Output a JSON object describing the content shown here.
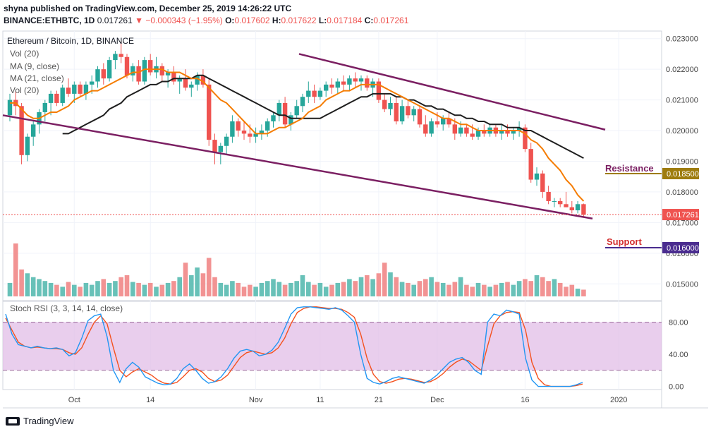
{
  "header": {
    "published": "shyna published on TradingView.com, December 25, 2019 14:26:22 UTC",
    "symbol": "BINANCE:ETHBTC, 1D",
    "last": "0.017261",
    "change": "−0.000343 (−1.95%)",
    "o_label": "O:",
    "o": "0.017602",
    "h_label": "H:",
    "h": "0.017622",
    "l_label": "L:",
    "l": "0.017184",
    "c_label": "C:",
    "c": "0.017261"
  },
  "legend": {
    "title": "Ethereum / Bitcoin, 1D, BINANCE",
    "vol1": "Vol (20)",
    "ma9": "MA (9, close)",
    "ma21": "MA (21, close)",
    "vol2": "Vol (20)"
  },
  "rsi_label": "Stoch RSI (3, 3, 14, 14, close)",
  "annotations": {
    "resistance": "Resistance",
    "resistance_value": "0.018500",
    "support": "Support",
    "support_value": "0.016000",
    "last_price_tag": "0.017261"
  },
  "footer": {
    "brand": "TradingView"
  },
  "colors": {
    "up": "#26a69a",
    "down": "#ef5350",
    "vol_up": "#4db6ac",
    "vol_down": "#f08080",
    "ma9": "#f57c00",
    "ma21": "#1e1e1e",
    "channel": "#7b1f62",
    "rsi_k": "#2196f3",
    "rsi_d": "#f4511e",
    "rsi_band": "#e1bee7",
    "resistance": "#9e7c0e",
    "support": "#4a2c8f"
  },
  "chart_data": {
    "type": "candlestick",
    "price_axis": {
      "ylim": [
        0.0145,
        0.0232
      ],
      "ticks": [
        "0.023000",
        "0.022000",
        "0.021000",
        "0.020000",
        "0.019000",
        "0.018000",
        "0.017000",
        "0.016000",
        "0.015000"
      ]
    },
    "rsi_axis": {
      "ylim": [
        -3,
        105
      ],
      "ticks": [
        "80.00",
        "40.00",
        "0.00"
      ],
      "band": [
        20,
        80
      ]
    },
    "x_axis": {
      "ticks": [
        {
          "i": 11,
          "label": "Oct"
        },
        {
          "i": 24,
          "label": "14"
        },
        {
          "i": 42,
          "label": "Nov"
        },
        {
          "i": 53,
          "label": "11"
        },
        {
          "i": 63,
          "label": "21"
        },
        {
          "i": 73,
          "label": "Dec"
        },
        {
          "i": 88,
          "label": "16"
        },
        {
          "i": 104,
          "label": "2020"
        }
      ]
    },
    "candles": [
      [
        0.0205,
        0.0212,
        0.0203,
        0.021
      ],
      [
        0.021,
        0.0213,
        0.0205,
        0.0208
      ],
      [
        0.0208,
        0.0209,
        0.0189,
        0.0192
      ],
      [
        0.0192,
        0.0199,
        0.019,
        0.0198
      ],
      [
        0.0198,
        0.0203,
        0.0195,
        0.0202
      ],
      [
        0.0202,
        0.0207,
        0.0199,
        0.0206
      ],
      [
        0.0206,
        0.021,
        0.0203,
        0.0209
      ],
      [
        0.0209,
        0.0213,
        0.0205,
        0.0212
      ],
      [
        0.0212,
        0.0213,
        0.0208,
        0.0209
      ],
      [
        0.0209,
        0.0215,
        0.0208,
        0.0214
      ],
      [
        0.0214,
        0.0217,
        0.0211,
        0.0212
      ],
      [
        0.0212,
        0.0216,
        0.0209,
        0.0215
      ],
      [
        0.0215,
        0.0216,
        0.0211,
        0.0212
      ],
      [
        0.0212,
        0.0216,
        0.021,
        0.0215
      ],
      [
        0.0215,
        0.0218,
        0.0212,
        0.0216
      ],
      [
        0.0216,
        0.0221,
        0.0214,
        0.022
      ],
      [
        0.022,
        0.0222,
        0.0215,
        0.0217
      ],
      [
        0.0217,
        0.0224,
        0.0216,
        0.0223
      ],
      [
        0.0223,
        0.0226,
        0.022,
        0.0225
      ],
      [
        0.0225,
        0.0229,
        0.0222,
        0.0224
      ],
      [
        0.0224,
        0.0225,
        0.0217,
        0.0218
      ],
      [
        0.0218,
        0.0222,
        0.0216,
        0.0221
      ],
      [
        0.0221,
        0.0223,
        0.0215,
        0.0216
      ],
      [
        0.0216,
        0.0224,
        0.0215,
        0.0223
      ],
      [
        0.0223,
        0.0225,
        0.0218,
        0.0219
      ],
      [
        0.0219,
        0.0224,
        0.0217,
        0.0221
      ],
      [
        0.0221,
        0.0222,
        0.0216,
        0.0218
      ],
      [
        0.0218,
        0.022,
        0.0214,
        0.0219
      ],
      [
        0.0219,
        0.0221,
        0.0215,
        0.0216
      ],
      [
        0.0216,
        0.0218,
        0.0212,
        0.0217
      ],
      [
        0.0217,
        0.022,
        0.0213,
        0.0214
      ],
      [
        0.0214,
        0.0216,
        0.0211,
        0.0215
      ],
      [
        0.0215,
        0.0219,
        0.0213,
        0.0218
      ],
      [
        0.0218,
        0.022,
        0.0214,
        0.0215
      ],
      [
        0.0215,
        0.0217,
        0.0195,
        0.0197
      ],
      [
        0.0197,
        0.0199,
        0.0189,
        0.0193
      ],
      [
        0.0193,
        0.0196,
        0.0189,
        0.0195
      ],
      [
        0.0195,
        0.0199,
        0.0192,
        0.0198
      ],
      [
        0.0198,
        0.0205,
        0.0196,
        0.0203
      ],
      [
        0.0203,
        0.0204,
        0.0198,
        0.02
      ],
      [
        0.02,
        0.0203,
        0.0197,
        0.0199
      ],
      [
        0.0199,
        0.0202,
        0.0196,
        0.0198
      ],
      [
        0.0198,
        0.0201,
        0.0196,
        0.0199
      ],
      [
        0.0199,
        0.0202,
        0.0197,
        0.02
      ],
      [
        0.02,
        0.0204,
        0.0198,
        0.0203
      ],
      [
        0.0203,
        0.0206,
        0.0201,
        0.0205
      ],
      [
        0.0205,
        0.021,
        0.0203,
        0.0209
      ],
      [
        0.0209,
        0.0211,
        0.0201,
        0.0202
      ],
      [
        0.0202,
        0.0206,
        0.02,
        0.0205
      ],
      [
        0.0205,
        0.021,
        0.0204,
        0.0208
      ],
      [
        0.0208,
        0.0212,
        0.0206,
        0.0211
      ],
      [
        0.0211,
        0.0216,
        0.0209,
        0.0213
      ],
      [
        0.0213,
        0.0215,
        0.0209,
        0.0211
      ],
      [
        0.0211,
        0.0214,
        0.021,
        0.0213
      ],
      [
        0.0213,
        0.0216,
        0.0211,
        0.0215
      ],
      [
        0.0215,
        0.0217,
        0.0212,
        0.0214
      ],
      [
        0.0214,
        0.0217,
        0.0212,
        0.0216
      ],
      [
        0.0216,
        0.0218,
        0.0213,
        0.0215
      ],
      [
        0.0215,
        0.0218,
        0.0213,
        0.0217
      ],
      [
        0.0217,
        0.0219,
        0.0214,
        0.0216
      ],
      [
        0.0216,
        0.0218,
        0.0213,
        0.0217
      ],
      [
        0.0217,
        0.0218,
        0.0213,
        0.0214
      ],
      [
        0.0214,
        0.0217,
        0.0211,
        0.0216
      ],
      [
        0.0216,
        0.0217,
        0.0209,
        0.021
      ],
      [
        0.021,
        0.0212,
        0.0206,
        0.0207
      ],
      [
        0.0207,
        0.0211,
        0.0205,
        0.0209
      ],
      [
        0.0209,
        0.0211,
        0.0202,
        0.0203
      ],
      [
        0.0203,
        0.021,
        0.0202,
        0.0208
      ],
      [
        0.0208,
        0.021,
        0.0204,
        0.0205
      ],
      [
        0.0205,
        0.0208,
        0.0203,
        0.0207
      ],
      [
        0.0207,
        0.0208,
        0.0201,
        0.0202
      ],
      [
        0.0202,
        0.0205,
        0.0198,
        0.0199
      ],
      [
        0.0199,
        0.0204,
        0.0198,
        0.0203
      ],
      [
        0.0203,
        0.0206,
        0.0201,
        0.0202
      ],
      [
        0.0202,
        0.0205,
        0.02,
        0.0204
      ],
      [
        0.0204,
        0.0206,
        0.0201,
        0.0202
      ],
      [
        0.0202,
        0.0204,
        0.0197,
        0.0199
      ],
      [
        0.0199,
        0.0203,
        0.0198,
        0.0201
      ],
      [
        0.0201,
        0.0202,
        0.0198,
        0.0199
      ],
      [
        0.0199,
        0.0202,
        0.0197,
        0.0198
      ],
      [
        0.0198,
        0.0201,
        0.0197,
        0.02
      ],
      [
        0.02,
        0.0202,
        0.0198,
        0.0199
      ],
      [
        0.0199,
        0.0202,
        0.0198,
        0.0201
      ],
      [
        0.0201,
        0.0202,
        0.0198,
        0.0199
      ],
      [
        0.0199,
        0.0202,
        0.0197,
        0.02
      ],
      [
        0.02,
        0.0202,
        0.0198,
        0.0199
      ],
      [
        0.0199,
        0.0201,
        0.0197,
        0.02
      ],
      [
        0.02,
        0.0203,
        0.0198,
        0.0201
      ],
      [
        0.0201,
        0.0202,
        0.0193,
        0.0194
      ],
      [
        0.0194,
        0.0196,
        0.0183,
        0.0184
      ],
      [
        0.0184,
        0.0188,
        0.0182,
        0.0186
      ],
      [
        0.0186,
        0.0187,
        0.0178,
        0.018
      ],
      [
        0.018,
        0.0182,
        0.0176,
        0.0177
      ],
      [
        0.0177,
        0.0178,
        0.0175,
        0.0177
      ],
      [
        0.0177,
        0.0178,
        0.0175,
        0.0176
      ],
      [
        0.0176,
        0.018,
        0.0175,
        0.0175
      ],
      [
        0.0175,
        0.0177,
        0.0173,
        0.0174
      ],
      [
        0.0174,
        0.0177,
        0.0173,
        0.0176
      ],
      [
        0.0176,
        0.01762,
        0.01718,
        0.01726
      ]
    ],
    "ma9": [
      0.0209,
      0.0209,
      0.0207,
      0.0205,
      0.0204,
      0.0204,
      0.0205,
      0.0206,
      0.0206,
      0.0207,
      0.0208,
      0.021,
      0.0211,
      0.0212,
      0.0213,
      0.0213,
      0.0214,
      0.0215,
      0.0216,
      0.0217,
      0.0218,
      0.0219,
      0.0219,
      0.022,
      0.022,
      0.022,
      0.022,
      0.0219,
      0.0219,
      0.0219,
      0.0218,
      0.0217,
      0.0217,
      0.0216,
      0.0214,
      0.0212,
      0.021,
      0.0209,
      0.0207,
      0.0205,
      0.0203,
      0.0201,
      0.0199,
      0.0199,
      0.0199,
      0.02,
      0.0201,
      0.0201,
      0.0202,
      0.0203,
      0.0204,
      0.0206,
      0.0207,
      0.0208,
      0.021,
      0.0211,
      0.0212,
      0.0213,
      0.0213,
      0.0214,
      0.0215,
      0.0215,
      0.0215,
      0.0215,
      0.0214,
      0.0213,
      0.0212,
      0.0211,
      0.021,
      0.0209,
      0.0208,
      0.0207,
      0.0206,
      0.0205,
      0.0204,
      0.0204,
      0.0203,
      0.0202,
      0.0202,
      0.0201,
      0.02,
      0.02,
      0.02,
      0.02,
      0.02,
      0.02,
      0.02,
      0.02,
      0.0199,
      0.0197,
      0.0196,
      0.0194,
      0.0191,
      0.0189,
      0.0187,
      0.0184,
      0.0182,
      0.0179,
      0.0177
    ],
    "ma21": [
      null,
      null,
      null,
      null,
      null,
      null,
      null,
      null,
      null,
      0.0199,
      0.0199,
      0.02,
      0.0201,
      0.0202,
      0.0203,
      0.0204,
      0.0205,
      0.0207,
      0.0208,
      0.0209,
      0.0211,
      0.0212,
      0.0213,
      0.0214,
      0.0215,
      0.0215,
      0.0216,
      0.0216,
      0.0217,
      0.0217,
      0.0217,
      0.0217,
      0.0218,
      0.0218,
      0.0217,
      0.0216,
      0.0215,
      0.0214,
      0.0213,
      0.0212,
      0.0211,
      0.021,
      0.0209,
      0.0208,
      0.0207,
      0.0206,
      0.0205,
      0.0205,
      0.0204,
      0.0204,
      0.0204,
      0.0204,
      0.0204,
      0.0204,
      0.0205,
      0.0206,
      0.0207,
      0.0208,
      0.0209,
      0.021,
      0.0211,
      0.0211,
      0.0212,
      0.0212,
      0.0212,
      0.0212,
      0.0211,
      0.0211,
      0.021,
      0.021,
      0.0209,
      0.0208,
      0.0208,
      0.0207,
      0.0207,
      0.0206,
      0.0205,
      0.0205,
      0.0204,
      0.0204,
      0.0203,
      0.0203,
      0.0202,
      0.0202,
      0.0202,
      0.0201,
      0.0201,
      0.0201,
      0.02,
      0.02,
      0.0199,
      0.0198,
      0.0197,
      0.0196,
      0.0195,
      0.0194,
      0.0193,
      0.0192,
      0.0191
    ],
    "volume": [
      14,
      55,
      28,
      24,
      20,
      18,
      16,
      14,
      12,
      10,
      15,
      12,
      10,
      14,
      12,
      16,
      18,
      14,
      16,
      20,
      22,
      15,
      14,
      12,
      14,
      10,
      12,
      14,
      16,
      20,
      35,
      22,
      30,
      24,
      40,
      20,
      14,
      12,
      16,
      14,
      10,
      12,
      10,
      14,
      16,
      18,
      15,
      12,
      14,
      16,
      22,
      15,
      12,
      14,
      10,
      12,
      14,
      15,
      18,
      16,
      20,
      22,
      18,
      24,
      35,
      25,
      20,
      15,
      14,
      12,
      16,
      18,
      20,
      15,
      14,
      12,
      15,
      20,
      12,
      10,
      14,
      12,
      10,
      12,
      14,
      15,
      12,
      16,
      18,
      16,
      22,
      20,
      16,
      18,
      14,
      10,
      12,
      8,
      7
    ],
    "stoch_k": [
      90,
      65,
      52,
      50,
      48,
      50,
      48,
      47,
      48,
      46,
      38,
      42,
      60,
      82,
      88,
      90,
      62,
      20,
      5,
      22,
      30,
      24,
      12,
      8,
      4,
      2,
      3,
      10,
      22,
      28,
      20,
      10,
      4,
      6,
      12,
      22,
      35,
      44,
      46,
      44,
      38,
      40,
      45,
      55,
      72,
      90,
      98,
      99,
      99,
      98,
      97,
      96,
      98,
      95,
      88,
      80,
      40,
      10,
      5,
      3,
      6,
      10,
      12,
      10,
      8,
      6,
      4,
      8,
      14,
      22,
      30,
      34,
      36,
      30,
      20,
      15,
      80,
      90,
      88,
      95,
      93,
      90,
      35,
      8,
      0,
      0,
      0,
      0,
      0,
      0,
      2,
      5
    ],
    "stoch_d": [
      85,
      70,
      55,
      50,
      48,
      49,
      48,
      47,
      47,
      46,
      42,
      40,
      48,
      65,
      80,
      88,
      78,
      48,
      20,
      12,
      18,
      22,
      18,
      14,
      8,
      4,
      3,
      5,
      12,
      20,
      22,
      18,
      10,
      6,
      8,
      14,
      25,
      36,
      42,
      44,
      42,
      40,
      42,
      48,
      60,
      78,
      92,
      97,
      99,
      99,
      98,
      97,
      97,
      96,
      92,
      86,
      65,
      35,
      15,
      6,
      4,
      6,
      9,
      10,
      9,
      7,
      5,
      6,
      10,
      16,
      24,
      30,
      34,
      32,
      26,
      20,
      50,
      78,
      88,
      92,
      93,
      92,
      70,
      30,
      10,
      2,
      0,
      0,
      0,
      0,
      1,
      3
    ]
  }
}
